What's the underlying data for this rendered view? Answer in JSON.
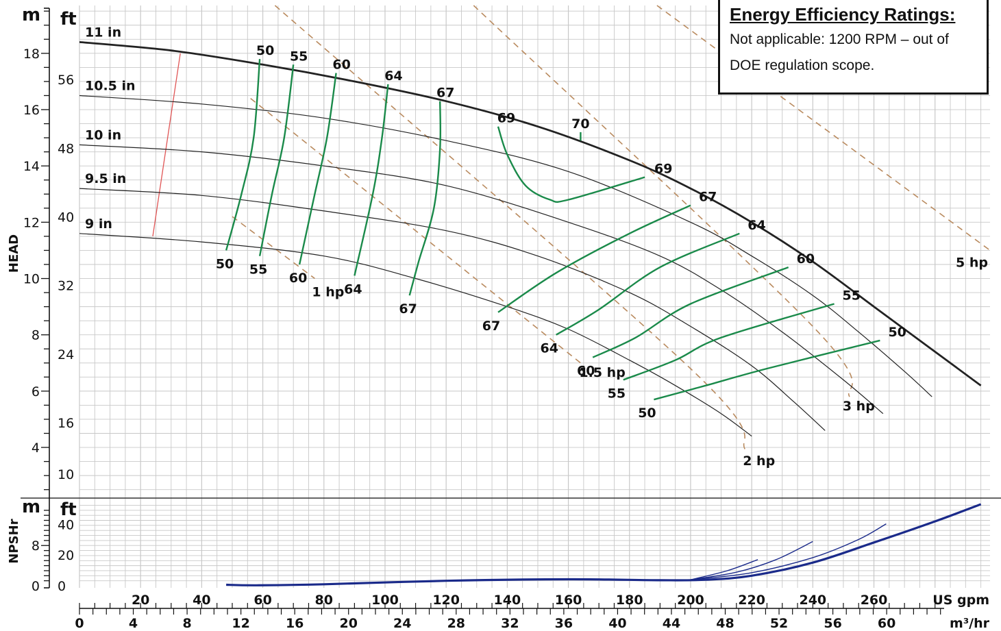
{
  "chart_data": [
    {
      "type": "line",
      "panel": "head",
      "ylabel": "HEAD",
      "y_units": [
        "m",
        "ft"
      ],
      "x_units": [
        "US gpm",
        "m³/hr"
      ],
      "x_ticks_gpm": [
        20,
        40,
        60,
        80,
        100,
        120,
        140,
        160,
        180,
        200,
        220,
        240,
        260
      ],
      "x_ticks_m3hr": [
        0,
        4,
        8,
        12,
        16,
        20,
        24,
        28,
        32,
        36,
        40,
        44,
        48,
        52,
        56,
        60
      ],
      "y_ticks_m": [
        4,
        6,
        8,
        10,
        12,
        14,
        16,
        18
      ],
      "y_ticks_ft": [
        10,
        16,
        24,
        32,
        40,
        48,
        56
      ],
      "xlim_gpm": [
        0,
        298
      ],
      "ylim_m": [
        2.2,
        19.7
      ],
      "grid": true,
      "impeller_curves": [
        {
          "label": "11 in",
          "heavy": true,
          "x": [
            0,
            30,
            60,
            90,
            120,
            150,
            180,
            200,
            220,
            240,
            260,
            280,
            295
          ],
          "y": [
            18.4,
            18.1,
            17.6,
            17.0,
            16.3,
            15.4,
            14.2,
            13.2,
            12.0,
            10.6,
            9.0,
            7.4,
            6.2
          ]
        },
        {
          "label": "10.5 in",
          "heavy": false,
          "x": [
            0,
            40,
            80,
            120,
            160,
            200,
            220,
            240,
            255,
            270,
            279
          ],
          "y": [
            16.5,
            16.2,
            15.7,
            14.9,
            13.8,
            12.0,
            10.8,
            9.4,
            8.1,
            6.7,
            5.8
          ]
        },
        {
          "label": "10 in",
          "heavy": false,
          "x": [
            0,
            40,
            80,
            120,
            160,
            190,
            210,
            230,
            250,
            263
          ],
          "y": [
            14.75,
            14.5,
            14.0,
            13.3,
            12.0,
            10.8,
            9.6,
            8.1,
            6.4,
            5.2
          ]
        },
        {
          "label": "9.5 in",
          "heavy": false,
          "x": [
            0,
            40,
            80,
            120,
            150,
            180,
            200,
            220,
            234,
            244
          ],
          "y": [
            13.2,
            12.95,
            12.4,
            11.7,
            10.8,
            9.5,
            8.3,
            6.9,
            5.6,
            4.6
          ]
        },
        {
          "label": "9 in",
          "heavy": false,
          "x": [
            0,
            40,
            80,
            110,
            140,
            160,
            180,
            195,
            210,
            220
          ],
          "y": [
            11.6,
            11.3,
            10.8,
            10.0,
            9.0,
            8.2,
            7.1,
            6.2,
            5.2,
            4.4
          ]
        }
      ],
      "efficiency_lines": [
        {
          "label": "50",
          "x": [
            59,
            57,
            53,
            48
          ],
          "y": [
            17.8,
            15.0,
            13.0,
            11.0
          ]
        },
        {
          "label": "55",
          "x": [
            70,
            67,
            63,
            59
          ],
          "y": [
            17.6,
            15.0,
            13.0,
            10.8
          ]
        },
        {
          "label": "60",
          "x": [
            84,
            81,
            77,
            72
          ],
          "y": [
            17.3,
            15.0,
            13.0,
            10.5
          ]
        },
        {
          "label": "64",
          "x": [
            101,
            99,
            96,
            90
          ],
          "y": [
            16.9,
            15.0,
            13.0,
            10.1
          ]
        },
        {
          "label": "67",
          "x": [
            118,
            118,
            116,
            111,
            108
          ],
          "y": [
            16.3,
            14.6,
            12.5,
            10.6,
            9.4
          ]
        },
        {
          "label": "69",
          "x": [
            137,
            140,
            146,
            154,
            160,
            185
          ],
          "y": [
            15.4,
            14.4,
            13.3,
            12.8,
            12.8,
            13.6
          ]
        },
        {
          "label": "70",
          "x": [
            164,
            164
          ],
          "y": [
            15.2,
            14.9
          ]
        },
        {
          "label": "67",
          "x": [
            200,
            180,
            156,
            137
          ],
          "y": [
            12.6,
            11.6,
            10.2,
            8.8
          ]
        },
        {
          "label": "64",
          "x": [
            216,
            190,
            170,
            156
          ],
          "y": [
            11.6,
            10.4,
            8.9,
            8.0
          ]
        },
        {
          "label": "60",
          "x": [
            232,
            200,
            182,
            168
          ],
          "y": [
            10.4,
            9.1,
            7.9,
            7.2
          ]
        },
        {
          "label": "55",
          "x": [
            247,
            210,
            195,
            178
          ],
          "y": [
            9.1,
            7.9,
            7.1,
            6.4
          ]
        },
        {
          "label": "50",
          "x": [
            262,
            225,
            205,
            188
          ],
          "y": [
            7.8,
            6.8,
            6.2,
            5.7
          ]
        }
      ],
      "power_lines": [
        {
          "label": "1 hp",
          "x": [
            50,
            77
          ],
          "y": [
            12.2,
            10.0
          ]
        },
        {
          "label": "1.5 hp",
          "x": [
            56,
            164
          ],
          "y": [
            16.4,
            7.0
          ]
        },
        {
          "label": "2 hp",
          "x": [
            64,
            200,
            218
          ],
          "y": [
            19.7,
            6.8,
            3.9
          ]
        },
        {
          "label": "3 hp",
          "x": [
            129,
            240,
            252
          ],
          "y": [
            19.7,
            8.3,
            5.8
          ]
        },
        {
          "label": "5 hp",
          "x": [
            189,
            298
          ],
          "y": [
            19.7,
            11.0
          ]
        }
      ],
      "min_diameter_line": {
        "x": [
          33,
          24
        ],
        "y": [
          18.0,
          11.5
        ]
      }
    },
    {
      "type": "line",
      "panel": "npshr",
      "ylabel": "NPSHr",
      "y_units": [
        "m",
        "ft"
      ],
      "y_ticks_m": [
        0,
        8
      ],
      "y_ticks_ft": [
        0,
        20,
        40
      ],
      "ylim_m": [
        0,
        16.2
      ],
      "grid": true,
      "series": [
        {
          "heavy": true,
          "x": [
            48,
            58,
            80,
            120,
            160,
            190,
            205,
            220,
            240,
            260,
            280,
            295
          ],
          "y": [
            0.2,
            0.1,
            0.3,
            1.0,
            1.3,
            1.1,
            1.2,
            2.0,
            4.6,
            8.6,
            12.8,
            16.2
          ]
        },
        {
          "heavy": false,
          "x": [
            200,
            220,
            240,
            255,
            264
          ],
          "y": [
            1.2,
            2.6,
            5.6,
            9.2,
            12.3
          ]
        },
        {
          "heavy": false,
          "x": [
            200,
            215,
            228,
            240
          ],
          "y": [
            1.2,
            2.7,
            5.2,
            8.8
          ]
        },
        {
          "heavy": false,
          "x": [
            200,
            212,
            222
          ],
          "y": [
            1.2,
            3.0,
            5.2
          ]
        }
      ]
    }
  ],
  "info_box": {
    "title": "Energy Efficiency Ratings:",
    "text": "Not applicable: 1200 RPM – out of DOE regulation scope."
  },
  "colors": {
    "grid": "#c8c8c8",
    "impeller": "#222222",
    "efficiency": "#1a8a4a",
    "power": "#b98a5e",
    "npsh": "#1a2a8a",
    "min_line": "#e05555"
  }
}
